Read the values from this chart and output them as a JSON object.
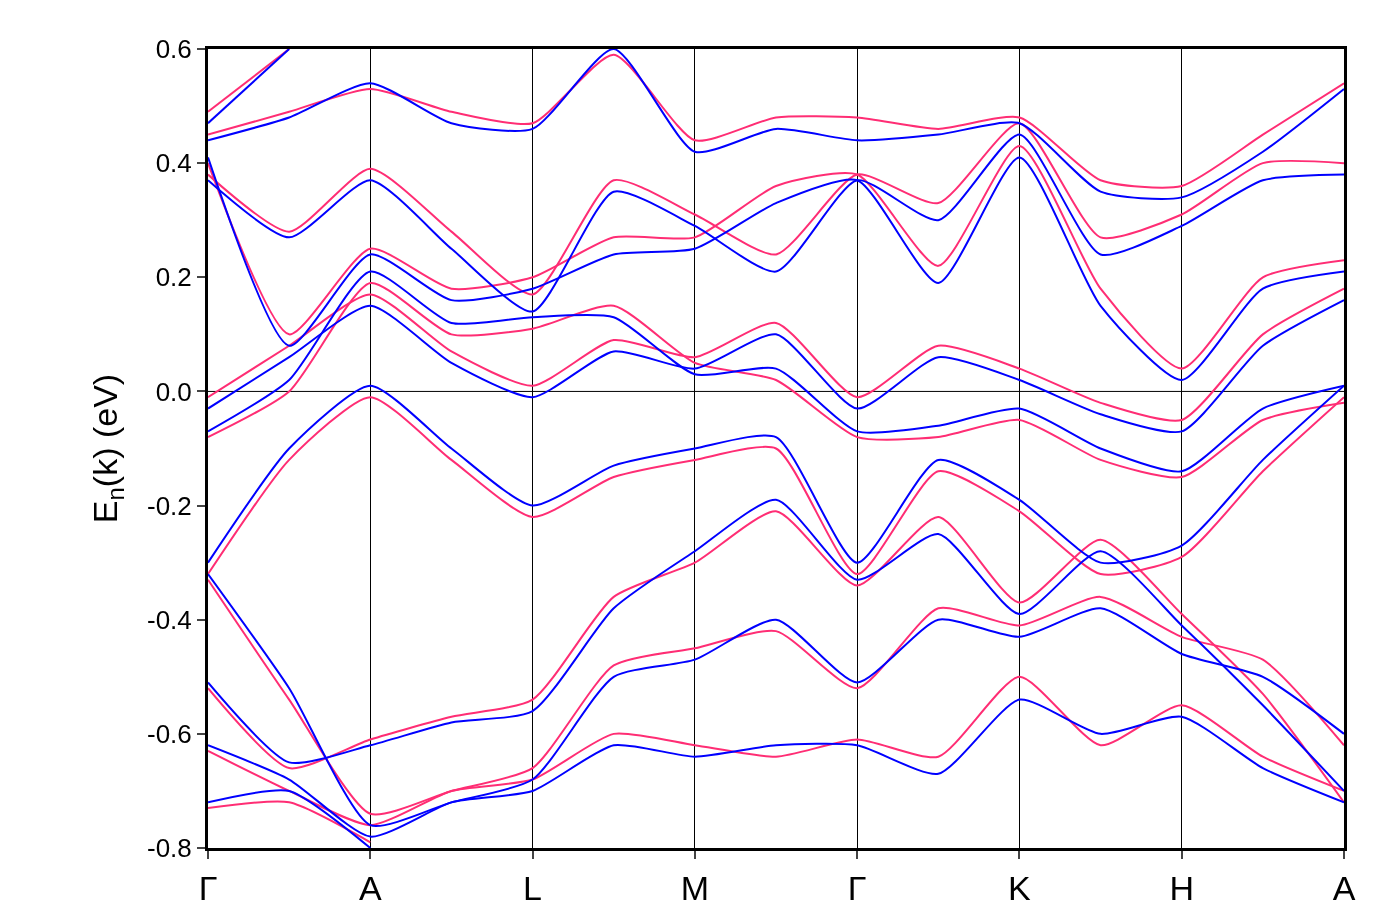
{
  "chart_data": {
    "type": "line",
    "ylabel": "E$_{n}$(k) (eV)",
    "categories": [
      "Γ",
      null,
      "A",
      null,
      "L",
      null,
      "M",
      null,
      "Γ",
      null,
      "K",
      null,
      "H",
      null,
      "A"
    ],
    "ylim": [
      -0.8,
      0.6
    ],
    "yticks": [
      {
        "value": -0.8,
        "label": "-0.8"
      },
      {
        "value": -0.6,
        "label": "-0.6"
      },
      {
        "value": -0.4,
        "label": "-0.4"
      },
      {
        "value": -0.2,
        "label": "-0.2"
      },
      {
        "value": 0,
        "label": "0.0"
      },
      {
        "value": 0.2,
        "label": "0.2"
      },
      {
        "value": 0.4,
        "label": "0.4"
      },
      {
        "value": 0.6,
        "label": "0.6"
      }
    ],
    "grid": "x",
    "marker": "none",
    "line_style": "solid",
    "ref_lines": [
      {
        "axis": "y",
        "value": 0,
        "color": "#000000"
      }
    ],
    "series": [
      {
        "color": "#ff2d74",
        "values": [
          -0.32,
          -0.12,
          -0.01,
          -0.12,
          -0.22,
          -0.15,
          -0.12,
          -0.1,
          -0.32,
          -0.14,
          -0.21,
          -0.32,
          -0.29,
          -0.14,
          -0.01
        ]
      },
      {
        "color": "#ff2d74",
        "values": [
          -0.01,
          0.08,
          0.17,
          0.07,
          0.01,
          0.09,
          0.06,
          0.12,
          -0.01,
          0.08,
          0.04,
          -0.02,
          -0.05,
          0.1,
          0.18
        ]
      },
      {
        "color": "#ff2d74",
        "values": [
          -0.08,
          0.0,
          0.19,
          0.1,
          0.11,
          0.15,
          0.05,
          0.02,
          -0.08,
          -0.08,
          -0.05,
          -0.12,
          -0.15,
          -0.05,
          -0.02
        ]
      },
      {
        "color": "#ff2d74",
        "values": [
          0.4,
          0.1,
          0.25,
          0.18,
          0.2,
          0.27,
          0.27,
          0.36,
          0.38,
          0.22,
          0.43,
          0.18,
          0.04,
          0.2,
          0.23
        ]
      },
      {
        "color": "#ff2d74",
        "values": [
          0.38,
          0.28,
          0.39,
          0.28,
          0.17,
          0.37,
          0.31,
          0.24,
          0.38,
          0.33,
          0.47,
          0.27,
          0.31,
          0.4,
          0.4
        ]
      },
      {
        "color": "#ff2d74",
        "values": [
          0.45,
          0.49,
          0.53,
          0.49,
          0.47,
          0.59,
          0.44,
          0.48,
          0.48,
          0.46,
          0.48,
          0.37,
          0.36,
          0.45,
          0.54
        ]
      },
      {
        "color": "#ff2d74",
        "values": [
          0.49,
          0.6,
          null,
          null,
          null,
          null,
          null,
          null,
          null,
          null,
          null,
          null,
          null,
          null,
          null
        ]
      },
      {
        "color": "#ff2d74",
        "values": [
          -0.33,
          -0.54,
          -0.74,
          -0.7,
          -0.66,
          -0.48,
          -0.45,
          -0.42,
          -0.52,
          -0.38,
          -0.41,
          -0.36,
          -0.43,
          -0.47,
          -0.62
        ]
      },
      {
        "color": "#ff2d74",
        "values": [
          -0.52,
          -0.66,
          -0.61,
          -0.57,
          -0.54,
          -0.36,
          -0.3,
          -0.21,
          -0.34,
          -0.22,
          -0.37,
          -0.26,
          -0.39,
          -0.53,
          -0.72
        ]
      },
      {
        "color": "#ff2d74",
        "values": [
          -0.63,
          -0.7,
          -0.76,
          -0.7,
          -0.68,
          -0.6,
          -0.62,
          -0.64,
          -0.61,
          -0.64,
          -0.5,
          -0.62,
          -0.55,
          -0.64,
          -0.7
        ]
      },
      {
        "color": "#ff2d74",
        "values": [
          -0.73,
          -0.72,
          -0.79,
          null,
          null,
          null,
          null,
          null,
          null,
          null,
          null,
          null,
          null,
          null,
          null
        ]
      },
      {
        "color": "#0000ff",
        "values": [
          -0.3,
          -0.1,
          0.01,
          -0.1,
          -0.2,
          -0.13,
          -0.1,
          -0.08,
          -0.3,
          -0.12,
          -0.19,
          -0.3,
          -0.27,
          -0.12,
          0.01
        ]
      },
      {
        "color": "#0000ff",
        "values": [
          -0.03,
          0.06,
          0.15,
          0.05,
          -0.01,
          0.07,
          0.04,
          0.1,
          -0.03,
          0.06,
          0.02,
          -0.04,
          -0.07,
          0.08,
          0.16
        ]
      },
      {
        "color": "#0000ff",
        "values": [
          -0.07,
          0.02,
          0.21,
          0.12,
          0.13,
          0.13,
          0.03,
          0.04,
          -0.07,
          -0.06,
          -0.03,
          -0.1,
          -0.14,
          -0.03,
          0.01
        ]
      },
      {
        "color": "#0000ff",
        "values": [
          0.41,
          0.08,
          0.24,
          0.16,
          0.18,
          0.24,
          0.25,
          0.33,
          0.37,
          0.19,
          0.41,
          0.15,
          0.02,
          0.18,
          0.21
        ]
      },
      {
        "color": "#0000ff",
        "values": [
          0.37,
          0.27,
          0.37,
          0.25,
          0.14,
          0.35,
          0.29,
          0.21,
          0.37,
          0.3,
          0.45,
          0.24,
          0.29,
          0.37,
          0.38
        ]
      },
      {
        "color": "#0000ff",
        "values": [
          0.44,
          0.48,
          0.54,
          0.47,
          0.46,
          0.6,
          0.42,
          0.46,
          0.44,
          0.45,
          0.47,
          0.35,
          0.34,
          0.42,
          0.53
        ]
      },
      {
        "color": "#0000ff",
        "values": [
          0.47,
          0.6,
          null,
          null,
          null,
          null,
          null,
          null,
          null,
          null,
          null,
          null,
          null,
          null,
          null
        ]
      },
      {
        "color": "#0000ff",
        "values": [
          -0.32,
          -0.52,
          -0.76,
          -0.72,
          -0.68,
          -0.5,
          -0.47,
          -0.4,
          -0.51,
          -0.4,
          -0.43,
          -0.38,
          -0.46,
          -0.5,
          -0.6
        ]
      },
      {
        "color": "#0000ff",
        "values": [
          -0.51,
          -0.65,
          -0.62,
          -0.58,
          -0.56,
          -0.38,
          -0.28,
          -0.19,
          -0.33,
          -0.25,
          -0.39,
          -0.28,
          -0.41,
          -0.55,
          -0.7
        ]
      },
      {
        "color": "#0000ff",
        "values": [
          -0.62,
          -0.68,
          -0.78,
          -0.72,
          -0.7,
          -0.62,
          -0.64,
          -0.62,
          -0.62,
          -0.67,
          -0.54,
          -0.6,
          -0.57,
          -0.66,
          -0.72
        ]
      },
      {
        "color": "#0000ff",
        "values": [
          -0.72,
          -0.7,
          -0.8,
          null,
          null,
          null,
          null,
          null,
          null,
          null,
          null,
          null,
          null,
          null,
          null
        ]
      }
    ]
  }
}
